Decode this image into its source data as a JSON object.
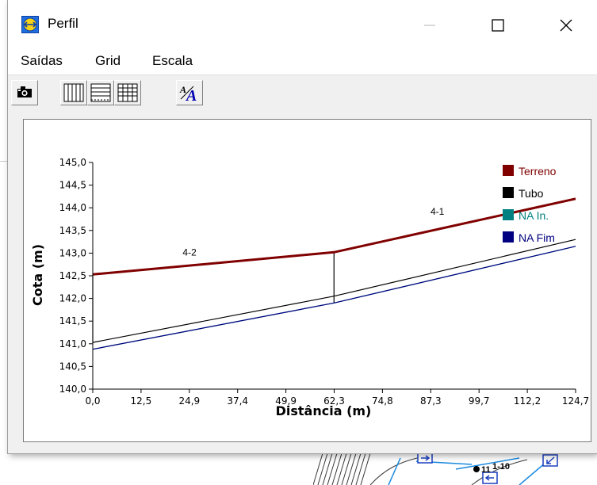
{
  "window": {
    "title": "Perfil",
    "controls": [
      "minimize",
      "maximize",
      "close"
    ]
  },
  "menu": [
    "Saídas",
    "Grid",
    "Escala"
  ],
  "toolbar": [
    "camera-icon",
    "vertical-grid-icon",
    "horizontal-grid-icon",
    "full-grid-icon",
    "font-scale-icon"
  ],
  "colors": {
    "terreno": "#800000",
    "tubo": "#000000",
    "na_in": "#008080",
    "na_fim": "#000080"
  },
  "background_labels": [
    "11",
    "1-10"
  ],
  "chart_data": {
    "type": "line",
    "xlabel": "Distância (m)",
    "ylabel": "Cota (m)",
    "xlim": [
      0,
      124.7
    ],
    "ylim": [
      140.0,
      145.0
    ],
    "x_ticks": [
      "0,0",
      "12,5",
      "24,9",
      "37,4",
      "49,9",
      "62,3",
      "74,8",
      "87,3",
      "99,7",
      "112,2",
      "124,7"
    ],
    "y_ticks": [
      "140,0",
      "140,5",
      "141,0",
      "141,5",
      "142,0",
      "142,5",
      "143,0",
      "143,5",
      "144,0",
      "144,5",
      "145,0"
    ],
    "grid": false,
    "legend_position": "top-right",
    "series": [
      {
        "name": "Terreno",
        "x": [
          0,
          62.3,
          124.7
        ],
        "y": [
          142.53,
          143.02,
          144.2
        ]
      },
      {
        "name": "Tubo",
        "x": [
          0,
          62.3,
          124.7
        ],
        "y": [
          141.03,
          142.05,
          143.3
        ]
      },
      {
        "name": "NA In.",
        "x": [
          0,
          62.3,
          124.7
        ],
        "y": [
          140.88,
          141.9,
          143.15
        ]
      },
      {
        "name": "NA Fim",
        "x": [
          0,
          62.3,
          124.7
        ],
        "y": [
          140.88,
          141.9,
          143.15
        ]
      }
    ],
    "verticals": [
      {
        "x": 0,
        "from": 141.03,
        "to": 142.53
      },
      {
        "x": 62.3,
        "from": 141.9,
        "to": 143.02
      }
    ],
    "segment_labels": [
      {
        "text": "4-2",
        "x": 25,
        "y": 142.95
      },
      {
        "text": "4-1",
        "x": 89,
        "y": 143.85
      }
    ]
  }
}
